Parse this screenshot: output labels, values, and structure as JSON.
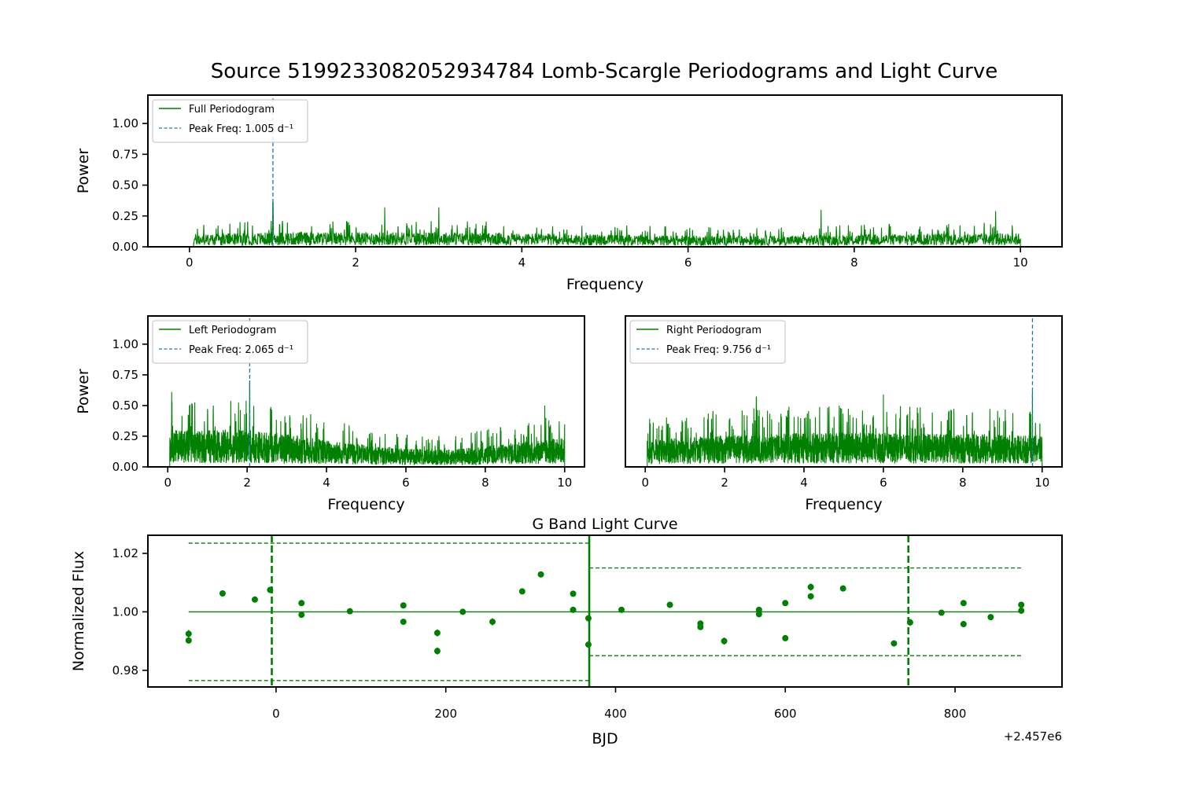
{
  "figure": {
    "title": "Source 5199233082052934784 Lomb-Scargle Periodograms and Light Curve",
    "colors": {
      "series": "#008000",
      "peak_line": "#1f77b4",
      "axes": "#000000"
    }
  },
  "chart_data": [
    {
      "id": "full",
      "type": "line",
      "xlabel": "Frequency",
      "ylabel": "Power",
      "xlim": [
        -0.5,
        10.5
      ],
      "ylim": [
        0,
        1.23
      ],
      "xticks": [
        0,
        2,
        4,
        6,
        8,
        10
      ],
      "yticks": [
        "0.00",
        "0.25",
        "0.50",
        "0.75",
        "1.00"
      ],
      "freq_range": [
        0.05,
        10.0
      ],
      "noise_profile": {
        "x": [
          0.05,
          1,
          2,
          3,
          4,
          5,
          6,
          7,
          8,
          9,
          10
        ],
        "y": [
          0.1,
          0.12,
          0.12,
          0.12,
          0.11,
          0.1,
          0.09,
          0.09,
          0.1,
          0.11,
          0.11
        ]
      },
      "spikes": [
        {
          "x": 1.005,
          "y": 0.36
        },
        {
          "x": 2.35,
          "y": 0.32
        },
        {
          "x": 3.0,
          "y": 0.32
        },
        {
          "x": 7.6,
          "y": 0.3
        },
        {
          "x": 9.7,
          "y": 0.29
        }
      ],
      "peak": {
        "freq": 1.005,
        "label": "Peak Freq: 1.005 d⁻¹"
      },
      "legend": {
        "series": "Full Periodogram",
        "position": "upper left"
      }
    },
    {
      "id": "left",
      "type": "line",
      "xlabel": "Frequency",
      "ylabel": "Power",
      "xlim": [
        -0.5,
        10.5
      ],
      "ylim": [
        0,
        1.23
      ],
      "xticks": [
        0,
        2,
        4,
        6,
        8,
        10
      ],
      "yticks": [
        "0.00",
        "0.25",
        "0.50",
        "0.75",
        "1.00"
      ],
      "freq_range": [
        0.05,
        10.0
      ],
      "noise_profile": {
        "x": [
          0.05,
          1,
          2,
          3,
          4,
          5,
          6,
          7,
          8,
          9,
          10
        ],
        "y": [
          0.3,
          0.3,
          0.3,
          0.27,
          0.22,
          0.18,
          0.15,
          0.14,
          0.17,
          0.21,
          0.24
        ]
      },
      "spikes": [
        {
          "x": 2.065,
          "y": 0.7
        },
        {
          "x": 0.1,
          "y": 0.61
        },
        {
          "x": 9.5,
          "y": 0.5
        }
      ],
      "peak": {
        "freq": 2.065,
        "label": "Peak Freq: 2.065 d⁻¹"
      },
      "legend": {
        "series": "Left Periodogram",
        "position": "upper left"
      }
    },
    {
      "id": "right",
      "type": "line",
      "xlabel": "Frequency",
      "ylabel": "",
      "xlim": [
        -0.5,
        10.5
      ],
      "ylim": [
        0,
        1.23
      ],
      "xticks": [
        0,
        2,
        4,
        6,
        8,
        10
      ],
      "yticks": [],
      "freq_range": [
        0.05,
        10.0
      ],
      "noise_profile": {
        "x": [
          0.05,
          1,
          2,
          3,
          4,
          5,
          6,
          7,
          8,
          9,
          10
        ],
        "y": [
          0.22,
          0.24,
          0.26,
          0.27,
          0.28,
          0.28,
          0.28,
          0.27,
          0.27,
          0.26,
          0.26
        ]
      },
      "spikes": [
        {
          "x": 9.756,
          "y": 0.62
        },
        {
          "x": 2.8,
          "y": 0.57
        },
        {
          "x": 6.0,
          "y": 0.59
        }
      ],
      "peak": {
        "freq": 9.756,
        "label": "Peak Freq: 9.756 d⁻¹"
      },
      "legend": {
        "series": "Right Periodogram",
        "position": "upper left"
      }
    },
    {
      "id": "lightcurve",
      "type": "scatter",
      "title": "G Band Light Curve",
      "xlabel": "BJD",
      "ylabel": "Normalized Flux",
      "xlim": [
        -151,
        926
      ],
      "ylim": [
        0.9743,
        1.0262
      ],
      "xticks": [
        0,
        200,
        400,
        600,
        800
      ],
      "yticks": [
        "0.98",
        "1.00",
        "1.02"
      ],
      "offset_label": "+2.457e6",
      "x_offset": 2457000,
      "points": [
        {
          "x": -103,
          "y": 0.9925,
          "err": 0.0013
        },
        {
          "x": -103,
          "y": 0.9902,
          "err": 0.0006
        },
        {
          "x": -63,
          "y": 1.0063,
          "err": 0.0005
        },
        {
          "x": -25,
          "y": 1.0042,
          "err": 0.0005
        },
        {
          "x": -7,
          "y": 1.0075,
          "err": 0.0008
        },
        {
          "x": 30,
          "y": 1.003,
          "err": 0.0005
        },
        {
          "x": 30,
          "y": 0.999,
          "err": 0.0005
        },
        {
          "x": 87,
          "y": 1.0002,
          "err": 0.0005
        },
        {
          "x": 150,
          "y": 1.0022,
          "err": 0.0008
        },
        {
          "x": 150,
          "y": 0.9966,
          "err": 0.0006
        },
        {
          "x": 190,
          "y": 0.9928,
          "err": 0.0012
        },
        {
          "x": 190,
          "y": 0.9866,
          "err": 0.0012
        },
        {
          "x": 220,
          "y": 1.0,
          "err": 0.0006
        },
        {
          "x": 255,
          "y": 0.9966,
          "err": 0.0012
        },
        {
          "x": 290,
          "y": 1.007,
          "err": 0.0008
        },
        {
          "x": 312,
          "y": 1.0128,
          "err": 0.001
        },
        {
          "x": 350,
          "y": 1.0062,
          "err": 0.0005
        },
        {
          "x": 350,
          "y": 1.0007,
          "err": 0.0005
        },
        {
          "x": 368,
          "y": 0.9978,
          "err": 0.0005
        },
        {
          "x": 368,
          "y": 0.9888,
          "err": 0.001
        },
        {
          "x": 407,
          "y": 1.0007,
          "err": 0.0005
        },
        {
          "x": 464,
          "y": 1.0024,
          "err": 0.0005
        },
        {
          "x": 500,
          "y": 0.996,
          "err": 0.0006
        },
        {
          "x": 500,
          "y": 0.9948,
          "err": 0.0006
        },
        {
          "x": 528,
          "y": 0.99,
          "err": 0.0012
        },
        {
          "x": 569,
          "y": 1.0007,
          "err": 0.0008
        },
        {
          "x": 569,
          "y": 0.9992,
          "err": 0.0006
        },
        {
          "x": 600,
          "y": 1.003,
          "err": 0.0005
        },
        {
          "x": 600,
          "y": 0.991,
          "err": 0.0005
        },
        {
          "x": 630,
          "y": 1.0085,
          "err": 0.0012
        },
        {
          "x": 630,
          "y": 1.0053,
          "err": 0.0008
        },
        {
          "x": 668,
          "y": 1.008,
          "err": 0.0005
        },
        {
          "x": 728,
          "y": 0.9892,
          "err": 0.0008
        },
        {
          "x": 747,
          "y": 0.9964,
          "err": 0.0012
        },
        {
          "x": 784,
          "y": 0.9997,
          "err": 0.0005
        },
        {
          "x": 810,
          "y": 1.003,
          "err": 0.0005
        },
        {
          "x": 810,
          "y": 0.9958,
          "err": 0.0005
        },
        {
          "x": 842,
          "y": 0.9982,
          "err": 0.0005
        },
        {
          "x": 878,
          "y": 1.0024,
          "err": 0.0005
        },
        {
          "x": 878,
          "y": 1.0004,
          "err": 0.0005
        }
      ],
      "vlines_dashed": [
        -5,
        745
      ],
      "vline_solid": 369,
      "segments": [
        {
          "x_range": [
            -103,
            369
          ],
          "mean": 1.0,
          "upper": 1.0235,
          "lower": 0.9765
        },
        {
          "x_range": [
            369,
            878
          ],
          "mean": 1.0,
          "upper": 1.015,
          "lower": 0.985
        }
      ]
    }
  ]
}
